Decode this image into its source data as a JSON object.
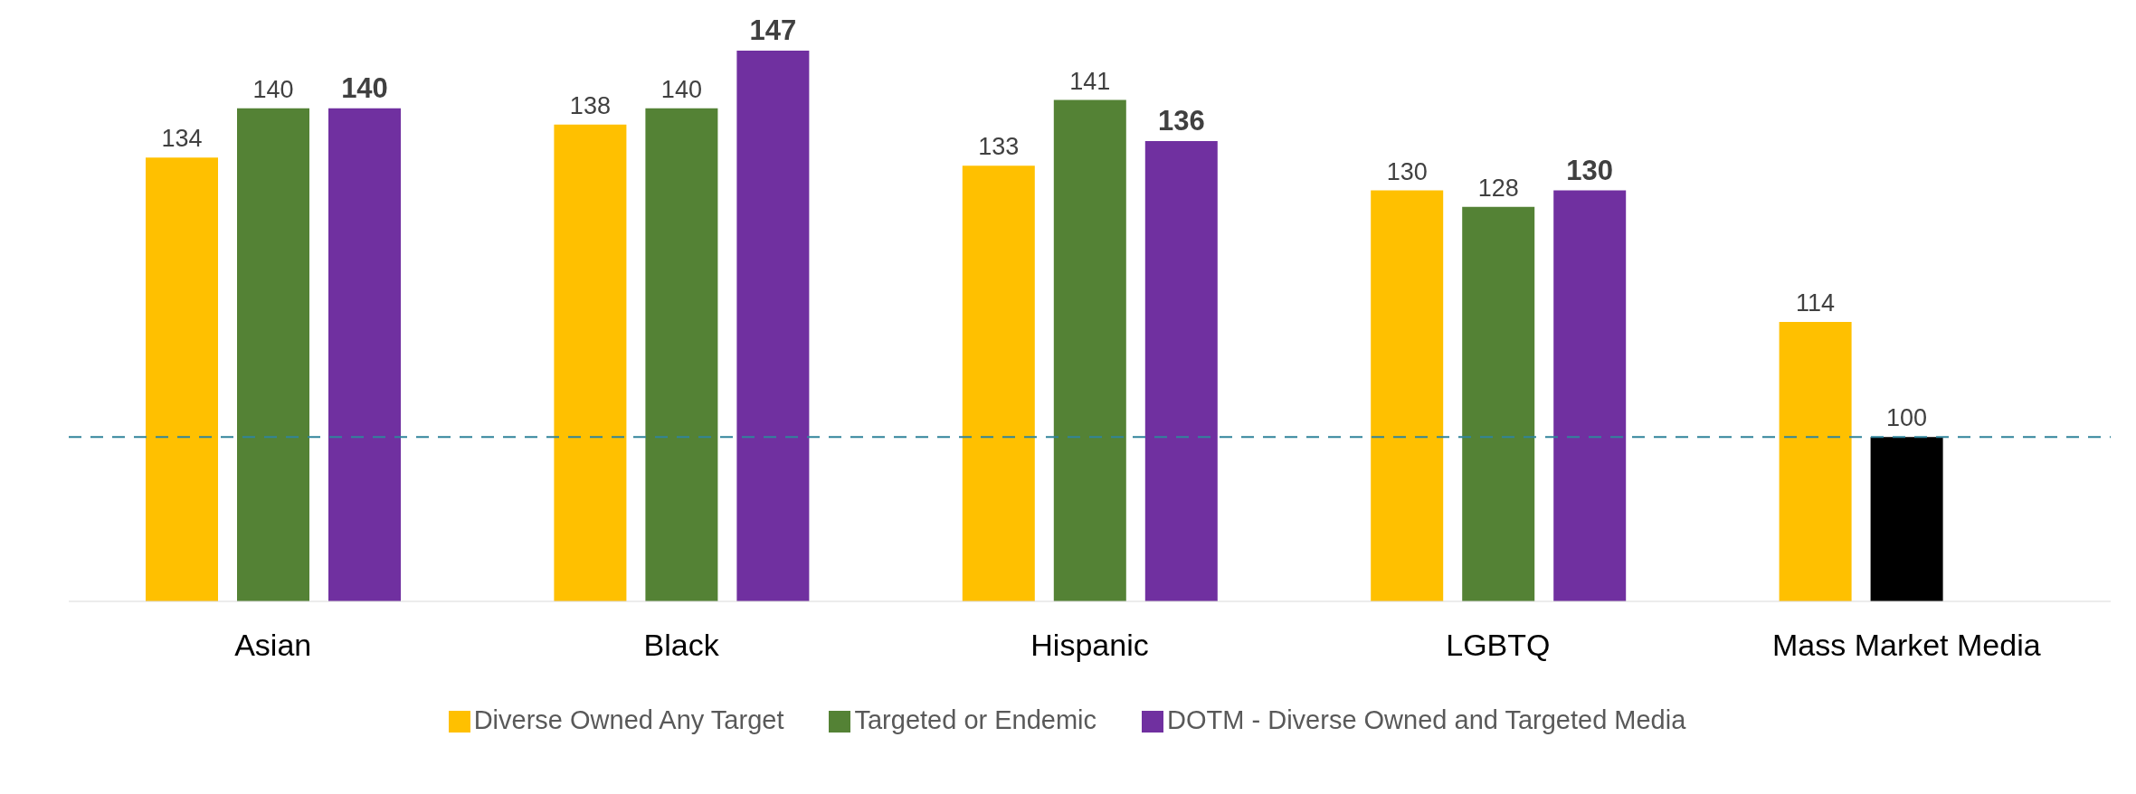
{
  "chart_data": {
    "type": "bar",
    "categories": [
      "Asian",
      "Black",
      "Hispanic",
      "LGBTQ",
      "Mass Market Media"
    ],
    "series": [
      {
        "name": "Diverse Owned Any Target",
        "color": "#ffc000",
        "values": [
          134,
          138,
          133,
          130,
          114
        ]
      },
      {
        "name": "Targeted or Endemic",
        "color": "#548235",
        "colors": [
          "#548235",
          "#548235",
          "#548235",
          "#548235",
          "#000000"
        ],
        "values": [
          140,
          140,
          141,
          128,
          100
        ]
      },
      {
        "name": "DOTM - Diverse Owned and Targeted Media",
        "color": "#7030a0",
        "values": [
          140,
          147,
          136,
          130,
          null
        ]
      }
    ],
    "ylim": [
      80,
      147
    ],
    "tick_labels": "x",
    "data_labels": true,
    "legend": "bottom",
    "grid": false,
    "ref_lines": [
      {
        "axis": "y",
        "value": 100,
        "color": "#31849b",
        "line_style": "dashed"
      }
    ]
  }
}
